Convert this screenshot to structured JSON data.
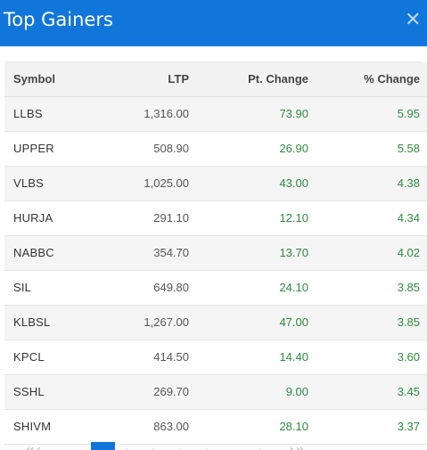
{
  "header": {
    "title": "Top Gainers",
    "close_icon": "close-icon"
  },
  "table": {
    "columns": [
      "Symbol",
      "LTP",
      "Pt. Change",
      "% Change"
    ],
    "rows": [
      {
        "symbol": "LLBS",
        "ltp": "1,316.00",
        "pt_change": "73.90",
        "pct_change": "5.95"
      },
      {
        "symbol": "UPPER",
        "ltp": "508.90",
        "pt_change": "26.90",
        "pct_change": "5.58"
      },
      {
        "symbol": "VLBS",
        "ltp": "1,025.00",
        "pt_change": "43.00",
        "pct_change": "4.38"
      },
      {
        "symbol": "HURJA",
        "ltp": "291.10",
        "pt_change": "12.10",
        "pct_change": "4.34"
      },
      {
        "symbol": "NABBC",
        "ltp": "354.70",
        "pt_change": "13.70",
        "pct_change": "4.02"
      },
      {
        "symbol": "SIL",
        "ltp": "649.80",
        "pt_change": "24.10",
        "pct_change": "3.85"
      },
      {
        "symbol": "KLBSL",
        "ltp": "1,267.00",
        "pt_change": "47.00",
        "pct_change": "3.85"
      },
      {
        "symbol": "KPCL",
        "ltp": "414.50",
        "pt_change": "14.40",
        "pct_change": "3.60"
      },
      {
        "symbol": "SSHL",
        "ltp": "269.70",
        "pt_change": "9.00",
        "pct_change": "3.45"
      },
      {
        "symbol": "SHIVM",
        "ltp": "863.00",
        "pt_change": "28.10",
        "pct_change": "3.37"
      }
    ]
  },
  "colors": {
    "header_bg": "#1176d9",
    "positive": "#2e8b3e"
  }
}
